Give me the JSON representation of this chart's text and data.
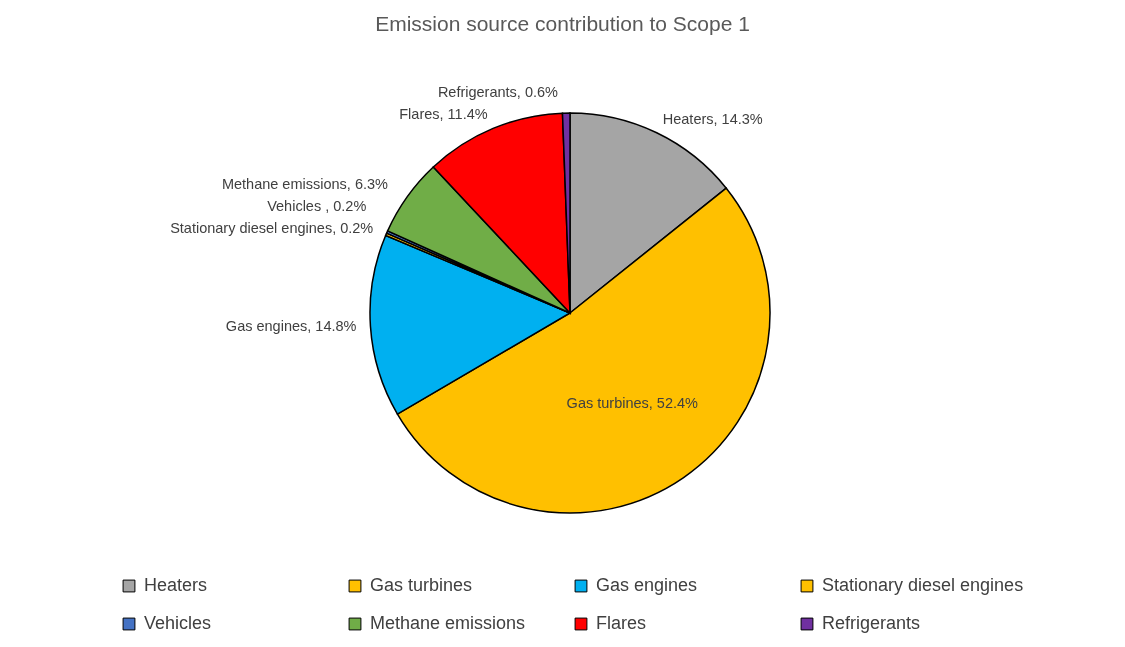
{
  "chart_data": {
    "type": "pie",
    "title": "Emission source contribution to Scope 1",
    "categories": [
      "Heaters",
      "Gas turbines",
      "Gas engines",
      "Stationary diesel engines",
      "Vehicles",
      "Methane emissions",
      "Flares",
      "Refrigerants"
    ],
    "values": [
      14.3,
      52.4,
      14.8,
      0.2,
      0.2,
      6.3,
      11.4,
      0.6
    ],
    "colors": [
      "#a5a5a5",
      "#ffc000",
      "#00b0f0",
      "#ffc000",
      "#4472c4",
      "#70ad47",
      "#ff0000",
      "#7030a0"
    ],
    "value_labels": [
      "Heaters, 14.3%",
      "Gas turbines, 52.4%",
      "Gas engines, 14.8%",
      "Stationary diesel engines, 0.2%",
      "Vehicles , 0.2%",
      "Methane emissions, 6.3%",
      "Flares, 11.4%",
      "Refrigerants, 0.6%"
    ],
    "legend": "bottom"
  }
}
